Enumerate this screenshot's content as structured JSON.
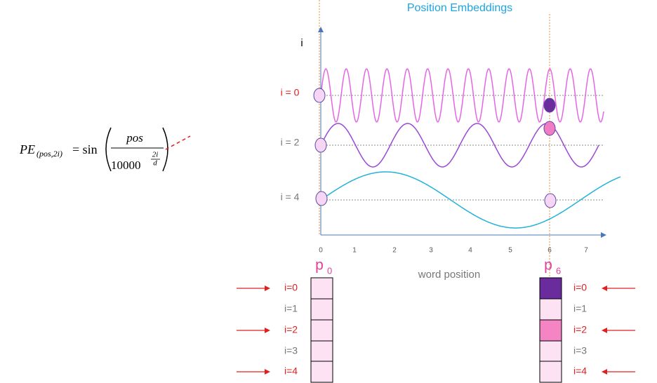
{
  "formula": {
    "lhs": "PE",
    "lhs_sub": "(pos,2i)",
    "op": "= sin",
    "numerator": "pos",
    "denominator": "10000",
    "exp_num": "2i",
    "exp_den": "d"
  },
  "title": "Position Embeddings",
  "y_axis_label": "i",
  "curve_labels": [
    "i = 0",
    "i = 2",
    "i = 4"
  ],
  "x_ticks": [
    0,
    1,
    2,
    3,
    4,
    5,
    6,
    7
  ],
  "x_axis_label": "word position",
  "vectors": [
    {
      "name": "p",
      "sub": "0",
      "rows": [
        "i=0",
        "i=1",
        "i=2",
        "i=3",
        "i=4"
      ]
    },
    {
      "name": "p",
      "sub": "6",
      "rows": [
        "i=0",
        "i=1",
        "i=2",
        "i=3",
        "i=4"
      ]
    }
  ]
}
